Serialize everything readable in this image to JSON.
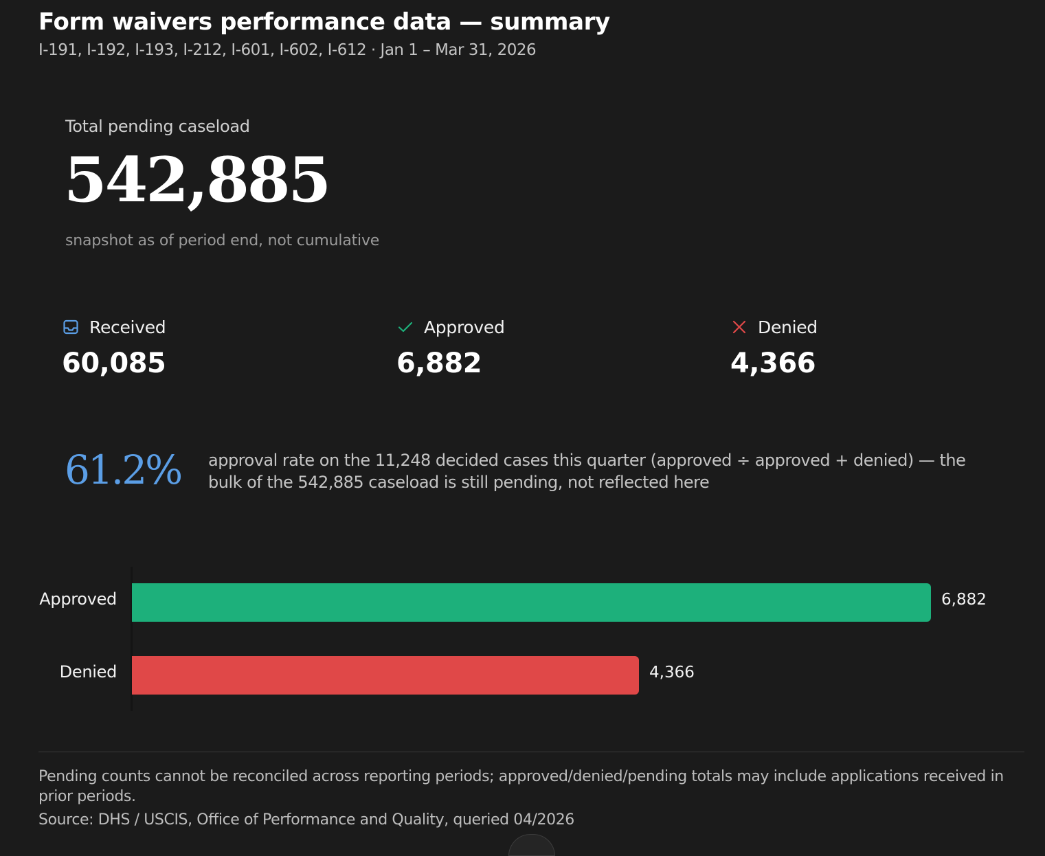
{
  "header": {
    "title": "Form waivers performance data — summary",
    "subtitle": "I-191, I-192, I-193, I-212, I-601, I-602, I-612 · Jan 1 – Mar 31, 2026"
  },
  "kpi": {
    "label": "Total pending caseload",
    "value": "542,885",
    "note": "snapshot as of period end, not cumulative"
  },
  "stats": {
    "received": {
      "label": "Received",
      "value": "60,085",
      "icon": "inbox-icon",
      "color": "#5b9ee6"
    },
    "approved": {
      "label": "Approved",
      "value": "6,882",
      "icon": "check-icon",
      "color": "#1db07b"
    },
    "denied": {
      "label": "Denied",
      "value": "4,366",
      "icon": "x-icon",
      "color": "#e04848"
    }
  },
  "approval_rate": {
    "value": "61.2%",
    "text": "approval rate on the 11,248 decided cases this quarter (approved ÷ approved + denied) — the bulk of the 542,885 caseload is still pending, not reflected here"
  },
  "chart_data": {
    "type": "bar",
    "orientation": "horizontal",
    "categories": [
      "Approved",
      "Denied"
    ],
    "values": [
      6882,
      4366
    ],
    "value_labels": [
      "6,882",
      "4,366"
    ],
    "colors": [
      "#1db07b",
      "#e04848"
    ],
    "xlim": [
      0,
      6882
    ],
    "grid": false
  },
  "footer": {
    "note": "Pending counts cannot be reconciled across reporting periods; approved/denied/pending totals may include applications received in prior periods.",
    "source": "Source: DHS / USCIS, Office of Performance and Quality, queried 04/2026"
  },
  "colors": {
    "background": "#1b1b1b",
    "accent": "#5b9ee6",
    "approved": "#1db07b",
    "denied": "#e04848"
  }
}
